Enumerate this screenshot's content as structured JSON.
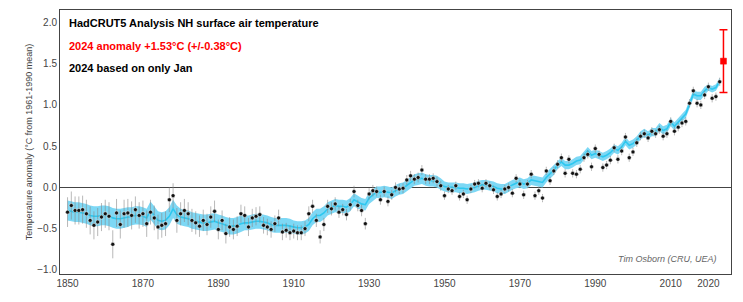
{
  "chart_data": {
    "type": "line",
    "title": "HadCRUT5 Analysis NH surface air temperature",
    "subtitle": [
      {
        "text": "2024 anomaly +1.53°C (+/-0.38°C)",
        "color": "red"
      },
      {
        "text": "2024 based on only Jan",
        "color": "#000000"
      }
    ],
    "credit": {
      "text": "Tim Osborn (CRU, UEA)",
      "color": "#666666"
    },
    "ylabel": "Temperature anomaly (°C from 1961-1990 mean)",
    "xlim": [
      1848,
      2026
    ],
    "xticks": [
      1850,
      1870,
      1890,
      1910,
      1930,
      1950,
      1970,
      1990,
      2010,
      2020
    ],
    "ylim": [
      -1.05,
      2.15
    ],
    "yticks": [
      {
        "value": -1.0,
        "label": "−1.0"
      },
      {
        "value": -0.5,
        "label": "−0.5"
      },
      {
        "value": 0.0,
        "label": "0.0"
      },
      {
        "value": 0.5,
        "label": "0.5"
      },
      {
        "value": 1.0,
        "label": "1.0"
      },
      {
        "value": 1.5,
        "label": "1.5"
      },
      {
        "value": 2.0,
        "label": "2.0"
      }
    ],
    "grid": false,
    "series": [
      {
        "type": "line",
        "color": "#2ec8f0",
        "x": [
          1850,
          1851,
          1852,
          1853,
          1854,
          1855,
          1856,
          1857,
          1858,
          1859,
          1860,
          1861,
          1862,
          1863,
          1864,
          1865,
          1866,
          1867,
          1868,
          1869,
          1870,
          1871,
          1872,
          1873,
          1874,
          1875,
          1876,
          1877,
          1878,
          1879,
          1880,
          1881,
          1882,
          1883,
          1884,
          1885,
          1886,
          1887,
          1888,
          1889,
          1890,
          1891,
          1892,
          1893,
          1894,
          1895,
          1896,
          1897,
          1898,
          1899,
          1900,
          1901,
          1902,
          1903,
          1904,
          1905,
          1906,
          1907,
          1908,
          1909,
          1910,
          1911,
          1912,
          1913,
          1914,
          1915,
          1916,
          1917,
          1918,
          1919,
          1920,
          1921,
          1922,
          1923,
          1924,
          1925,
          1926,
          1927,
          1928,
          1929,
          1930,
          1931,
          1932,
          1933,
          1934,
          1935,
          1936,
          1937,
          1938,
          1939,
          1940,
          1941,
          1942,
          1943,
          1944,
          1945,
          1946,
          1947,
          1948,
          1949,
          1950,
          1951,
          1952,
          1953,
          1954,
          1955,
          1956,
          1957,
          1958,
          1959,
          1960,
          1961,
          1962,
          1963,
          1964,
          1965,
          1966,
          1967,
          1968,
          1969,
          1970,
          1971,
          1972,
          1973,
          1974,
          1975,
          1976,
          1977,
          1978,
          1979,
          1980,
          1981,
          1982,
          1983,
          1984,
          1985,
          1986,
          1987,
          1988,
          1989,
          1990,
          1991,
          1992,
          1993,
          1994,
          1995,
          1996,
          1997,
          1998,
          1999,
          2000,
          2001,
          2002,
          2003,
          2004,
          2005,
          2006,
          2007,
          2008,
          2009,
          2010,
          2011,
          2012,
          2013,
          2014,
          2015,
          2016,
          2017,
          2018,
          2019,
          2020,
          2021,
          2022,
          2023
        ],
        "values": [
          -0.28,
          -0.29,
          -0.3,
          -0.3,
          -0.31,
          -0.32,
          -0.34,
          -0.35,
          -0.35,
          -0.34,
          -0.34,
          -0.35,
          -0.37,
          -0.38,
          -0.38,
          -0.37,
          -0.36,
          -0.35,
          -0.34,
          -0.34,
          -0.35,
          -0.37,
          -0.28,
          -0.34,
          -0.4,
          -0.41,
          -0.4,
          -0.35,
          -0.26,
          -0.33,
          -0.36,
          -0.37,
          -0.38,
          -0.4,
          -0.41,
          -0.42,
          -0.43,
          -0.43,
          -0.42,
          -0.41,
          -0.43,
          -0.44,
          -0.46,
          -0.47,
          -0.47,
          -0.46,
          -0.44,
          -0.43,
          -0.43,
          -0.42,
          -0.41,
          -0.41,
          -0.42,
          -0.43,
          -0.45,
          -0.46,
          -0.46,
          -0.46,
          -0.46,
          -0.47,
          -0.48,
          -0.49,
          -0.49,
          -0.48,
          -0.45,
          -0.38,
          -0.34,
          -0.34,
          -0.31,
          -0.26,
          -0.24,
          -0.22,
          -0.23,
          -0.23,
          -0.24,
          -0.21,
          -0.15,
          -0.18,
          -0.2,
          -0.21,
          -0.13,
          -0.09,
          -0.06,
          -0.06,
          -0.05,
          -0.06,
          -0.07,
          -0.04,
          -0.02,
          -0.01,
          0.02,
          0.06,
          0.09,
          0.1,
          0.11,
          0.09,
          0.08,
          0.08,
          0.07,
          0.04,
          0.01,
          0.0,
          0.0,
          0.0,
          -0.01,
          -0.01,
          -0.02,
          -0.01,
          0.0,
          0.02,
          0.03,
          0.03,
          0.02,
          0.01,
          -0.01,
          -0.02,
          -0.02,
          0.01,
          0.03,
          0.05,
          0.06,
          0.04,
          0.05,
          0.09,
          0.08,
          0.07,
          0.06,
          0.12,
          0.16,
          0.21,
          0.27,
          0.31,
          0.27,
          0.27,
          0.29,
          0.32,
          0.33,
          0.38,
          0.44,
          0.39,
          0.41,
          0.39,
          0.37,
          0.39,
          0.42,
          0.47,
          0.45,
          0.49,
          0.56,
          0.51,
          0.53,
          0.57,
          0.63,
          0.66,
          0.63,
          0.67,
          0.67,
          0.73,
          0.69,
          0.71,
          0.79,
          0.74,
          0.79,
          0.85,
          0.89,
          1.01,
          1.13,
          1.11,
          1.11,
          1.17,
          1.21,
          1.19,
          1.21,
          1.29
        ],
        "uncertainty": {
          "color": "#7dd8f5",
          "values": [
            0.12,
            0.12,
            0.12,
            0.12,
            0.12,
            0.12,
            0.12,
            0.12,
            0.12,
            0.12,
            0.12,
            0.12,
            0.12,
            0.12,
            0.12,
            0.12,
            0.12,
            0.11,
            0.11,
            0.11,
            0.11,
            0.11,
            0.11,
            0.11,
            0.11,
            0.11,
            0.11,
            0.11,
            0.11,
            0.11,
            0.1,
            0.1,
            0.1,
            0.1,
            0.1,
            0.1,
            0.1,
            0.1,
            0.1,
            0.1,
            0.1,
            0.1,
            0.1,
            0.1,
            0.1,
            0.1,
            0.1,
            0.09,
            0.09,
            0.09,
            0.09,
            0.09,
            0.09,
            0.09,
            0.09,
            0.09,
            0.09,
            0.09,
            0.09,
            0.09,
            0.08,
            0.08,
            0.08,
            0.08,
            0.08,
            0.08,
            0.08,
            0.08,
            0.08,
            0.08,
            0.08,
            0.08,
            0.08,
            0.08,
            0.08,
            0.08,
            0.08,
            0.08,
            0.07,
            0.07,
            0.07,
            0.07,
            0.07,
            0.07,
            0.07,
            0.07,
            0.07,
            0.07,
            0.07,
            0.07,
            0.07,
            0.07,
            0.07,
            0.07,
            0.07,
            0.07,
            0.07,
            0.07,
            0.07,
            0.07,
            0.06,
            0.06,
            0.06,
            0.06,
            0.06,
            0.06,
            0.06,
            0.06,
            0.06,
            0.06,
            0.06,
            0.06,
            0.06,
            0.06,
            0.06,
            0.06,
            0.06,
            0.06,
            0.06,
            0.06,
            0.06,
            0.06,
            0.06,
            0.06,
            0.06,
            0.06,
            0.06,
            0.06,
            0.06,
            0.06,
            0.05,
            0.05,
            0.05,
            0.05,
            0.05,
            0.05,
            0.05,
            0.05,
            0.05,
            0.05,
            0.05,
            0.05,
            0.05,
            0.05,
            0.05,
            0.05,
            0.05,
            0.05,
            0.05,
            0.05,
            0.05,
            0.05,
            0.05,
            0.05,
            0.05,
            0.05,
            0.05,
            0.05,
            0.05,
            0.05,
            0.05,
            0.05,
            0.05,
            0.05,
            0.05,
            0.05,
            0.05,
            0.05,
            0.05,
            0.05,
            0.04,
            0.04,
            0.04,
            0.04
          ]
        }
      },
      {
        "type": "scatter",
        "marker": "circle",
        "color": "#111111",
        "x": [
          1850,
          1851,
          1852,
          1853,
          1854,
          1855,
          1856,
          1857,
          1858,
          1859,
          1860,
          1861,
          1862,
          1863,
          1864,
          1865,
          1866,
          1867,
          1868,
          1869,
          1870,
          1871,
          1872,
          1873,
          1874,
          1875,
          1876,
          1877,
          1878,
          1879,
          1880,
          1881,
          1882,
          1883,
          1884,
          1885,
          1886,
          1887,
          1888,
          1889,
          1890,
          1891,
          1892,
          1893,
          1894,
          1895,
          1896,
          1897,
          1898,
          1899,
          1900,
          1901,
          1902,
          1903,
          1904,
          1905,
          1906,
          1907,
          1908,
          1909,
          1910,
          1911,
          1912,
          1913,
          1914,
          1915,
          1916,
          1917,
          1918,
          1919,
          1920,
          1921,
          1922,
          1923,
          1924,
          1925,
          1926,
          1927,
          1928,
          1929,
          1930,
          1931,
          1932,
          1933,
          1934,
          1935,
          1936,
          1937,
          1938,
          1939,
          1940,
          1941,
          1942,
          1943,
          1944,
          1945,
          1946,
          1947,
          1948,
          1949,
          1950,
          1951,
          1952,
          1953,
          1954,
          1955,
          1956,
          1957,
          1958,
          1959,
          1960,
          1961,
          1962,
          1963,
          1964,
          1965,
          1966,
          1967,
          1968,
          1969,
          1970,
          1971,
          1972,
          1973,
          1974,
          1975,
          1976,
          1977,
          1978,
          1979,
          1980,
          1981,
          1982,
          1983,
          1984,
          1985,
          1986,
          1987,
          1988,
          1989,
          1990,
          1991,
          1992,
          1993,
          1994,
          1995,
          1996,
          1997,
          1998,
          1999,
          2000,
          2001,
          2002,
          2003,
          2004,
          2005,
          2006,
          2007,
          2008,
          2009,
          2010,
          2011,
          2012,
          2013,
          2014,
          2015,
          2016,
          2017,
          2018,
          2019,
          2020,
          2021,
          2022,
          2023
        ],
        "values": [
          -0.3,
          -0.22,
          -0.28,
          -0.28,
          -0.27,
          -0.32,
          -0.4,
          -0.46,
          -0.42,
          -0.36,
          -0.32,
          -0.35,
          -0.69,
          -0.31,
          -0.45,
          -0.32,
          -0.31,
          -0.34,
          -0.27,
          -0.34,
          -0.32,
          -0.44,
          -0.3,
          -0.37,
          -0.48,
          -0.46,
          -0.44,
          -0.15,
          -0.1,
          -0.4,
          -0.32,
          -0.28,
          -0.32,
          -0.4,
          -0.43,
          -0.47,
          -0.4,
          -0.45,
          -0.36,
          -0.29,
          -0.51,
          -0.4,
          -0.56,
          -0.48,
          -0.51,
          -0.47,
          -0.32,
          -0.34,
          -0.48,
          -0.37,
          -0.35,
          -0.33,
          -0.46,
          -0.48,
          -0.51,
          -0.44,
          -0.37,
          -0.54,
          -0.52,
          -0.55,
          -0.53,
          -0.55,
          -0.55,
          -0.5,
          -0.32,
          -0.23,
          -0.4,
          -0.6,
          -0.45,
          -0.23,
          -0.26,
          -0.2,
          -0.3,
          -0.27,
          -0.33,
          -0.21,
          -0.05,
          -0.22,
          -0.28,
          -0.44,
          -0.08,
          -0.04,
          -0.05,
          -0.15,
          -0.05,
          -0.17,
          -0.09,
          0.0,
          -0.02,
          -0.01,
          0.09,
          0.14,
          0.1,
          0.12,
          0.21,
          0.1,
          0.1,
          0.11,
          0.07,
          0.02,
          -0.1,
          -0.02,
          -0.04,
          0.02,
          -0.11,
          -0.08,
          -0.15,
          -0.02,
          0.04,
          0.05,
          -0.01,
          0.05,
          0.02,
          -0.03,
          -0.11,
          -0.08,
          -0.02,
          0.0,
          -0.07,
          0.11,
          0.04,
          -0.09,
          0.04,
          0.16,
          -0.1,
          -0.04,
          -0.13,
          0.2,
          0.08,
          0.2,
          0.28,
          0.36,
          0.17,
          0.34,
          0.17,
          0.16,
          0.22,
          0.36,
          0.4,
          0.25,
          0.47,
          0.4,
          0.24,
          0.27,
          0.33,
          0.48,
          0.34,
          0.44,
          0.61,
          0.36,
          0.43,
          0.54,
          0.62,
          0.65,
          0.6,
          0.68,
          0.65,
          0.7,
          0.62,
          0.65,
          0.8,
          0.68,
          0.73,
          0.78,
          0.8,
          1.02,
          1.17,
          1.02,
          1.0,
          1.12,
          1.22,
          1.08,
          1.1,
          1.28
        ],
        "errors": {
          "color": "#888888",
          "values": [
            0.18,
            0.17,
            0.17,
            0.17,
            0.17,
            0.17,
            0.17,
            0.17,
            0.17,
            0.17,
            0.17,
            0.17,
            0.17,
            0.17,
            0.17,
            0.17,
            0.17,
            0.17,
            0.16,
            0.16,
            0.16,
            0.16,
            0.15,
            0.15,
            0.15,
            0.15,
            0.15,
            0.15,
            0.15,
            0.15,
            0.14,
            0.14,
            0.14,
            0.14,
            0.14,
            0.13,
            0.13,
            0.13,
            0.13,
            0.13,
            0.12,
            0.12,
            0.12,
            0.12,
            0.12,
            0.12,
            0.11,
            0.11,
            0.11,
            0.11,
            0.11,
            0.1,
            0.1,
            0.1,
            0.1,
            0.1,
            0.1,
            0.1,
            0.09,
            0.09,
            0.09,
            0.09,
            0.09,
            0.09,
            0.09,
            0.08,
            0.08,
            0.08,
            0.08,
            0.08,
            0.08,
            0.08,
            0.07,
            0.07,
            0.07,
            0.07,
            0.07,
            0.07,
            0.07,
            0.07,
            0.07,
            0.07,
            0.06,
            0.06,
            0.06,
            0.06,
            0.06,
            0.06,
            0.06,
            0.06,
            0.06,
            0.06,
            0.06,
            0.06,
            0.06,
            0.06,
            0.06,
            0.06,
            0.06,
            0.06,
            0.05,
            0.05,
            0.05,
            0.05,
            0.05,
            0.05,
            0.05,
            0.05,
            0.05,
            0.05,
            0.05,
            0.05,
            0.05,
            0.05,
            0.05,
            0.05,
            0.05,
            0.05,
            0.05,
            0.05,
            0.05,
            0.05,
            0.05,
            0.05,
            0.05,
            0.05,
            0.05,
            0.05,
            0.05,
            0.05,
            0.05,
            0.05,
            0.05,
            0.05,
            0.05,
            0.05,
            0.05,
            0.05,
            0.05,
            0.05,
            0.05,
            0.05,
            0.05,
            0.05,
            0.05,
            0.05,
            0.05,
            0.05,
            0.05,
            0.05,
            0.05,
            0.05,
            0.05,
            0.05,
            0.05,
            0.05,
            0.05,
            0.05,
            0.05,
            0.05,
            0.05,
            0.05,
            0.05,
            0.05,
            0.05,
            0.05,
            0.05,
            0.05,
            0.05,
            0.05,
            0.05,
            0.05,
            0.05,
            0.05
          ]
        }
      },
      {
        "type": "scatter",
        "marker": "square",
        "color": "red",
        "x": [
          2024
        ],
        "values": [
          1.53
        ],
        "errors": {
          "color": "red",
          "values": [
            0.38
          ]
        }
      }
    ]
  }
}
